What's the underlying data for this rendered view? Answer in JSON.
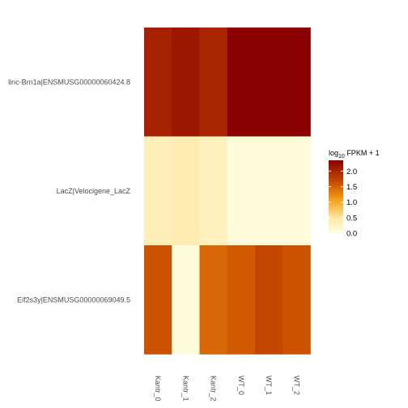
{
  "chart_data": {
    "type": "heatmap",
    "rows": [
      "linc-Brn1a|ENSMUSG00000060424.8",
      "LacZ|Velocigene_LacZ",
      "Eif2s3y|ENSMUSG00000069049.5"
    ],
    "columns": [
      "Kantr_0",
      "Kantr_1",
      "Kantr_2",
      "WT_0",
      "WT_1",
      "WT_2"
    ],
    "values": [
      [
        2.05,
        2.15,
        2.0,
        2.35,
        2.35,
        2.35
      ],
      [
        0.35,
        0.4,
        0.3,
        0.05,
        0.05,
        0.05
      ],
      [
        1.6,
        0.05,
        1.45,
        1.55,
        1.7,
        1.6
      ]
    ],
    "legend": {
      "title_prefix": "log",
      "title_sub": "10",
      "title_suffix": " FPKM + 1",
      "ticks": [
        "0.0",
        "0.5",
        "1.0",
        "1.5",
        "2.0"
      ],
      "tick_values": [
        0,
        0.5,
        1.0,
        1.5,
        2.0
      ],
      "range": [
        0,
        2.35
      ]
    },
    "colors": {
      "low": "#FFFEE2",
      "mid_low": "#FEE9A8",
      "mid": "#F7A21C",
      "mid_high": "#CC5200",
      "high": "#8B0000"
    }
  }
}
